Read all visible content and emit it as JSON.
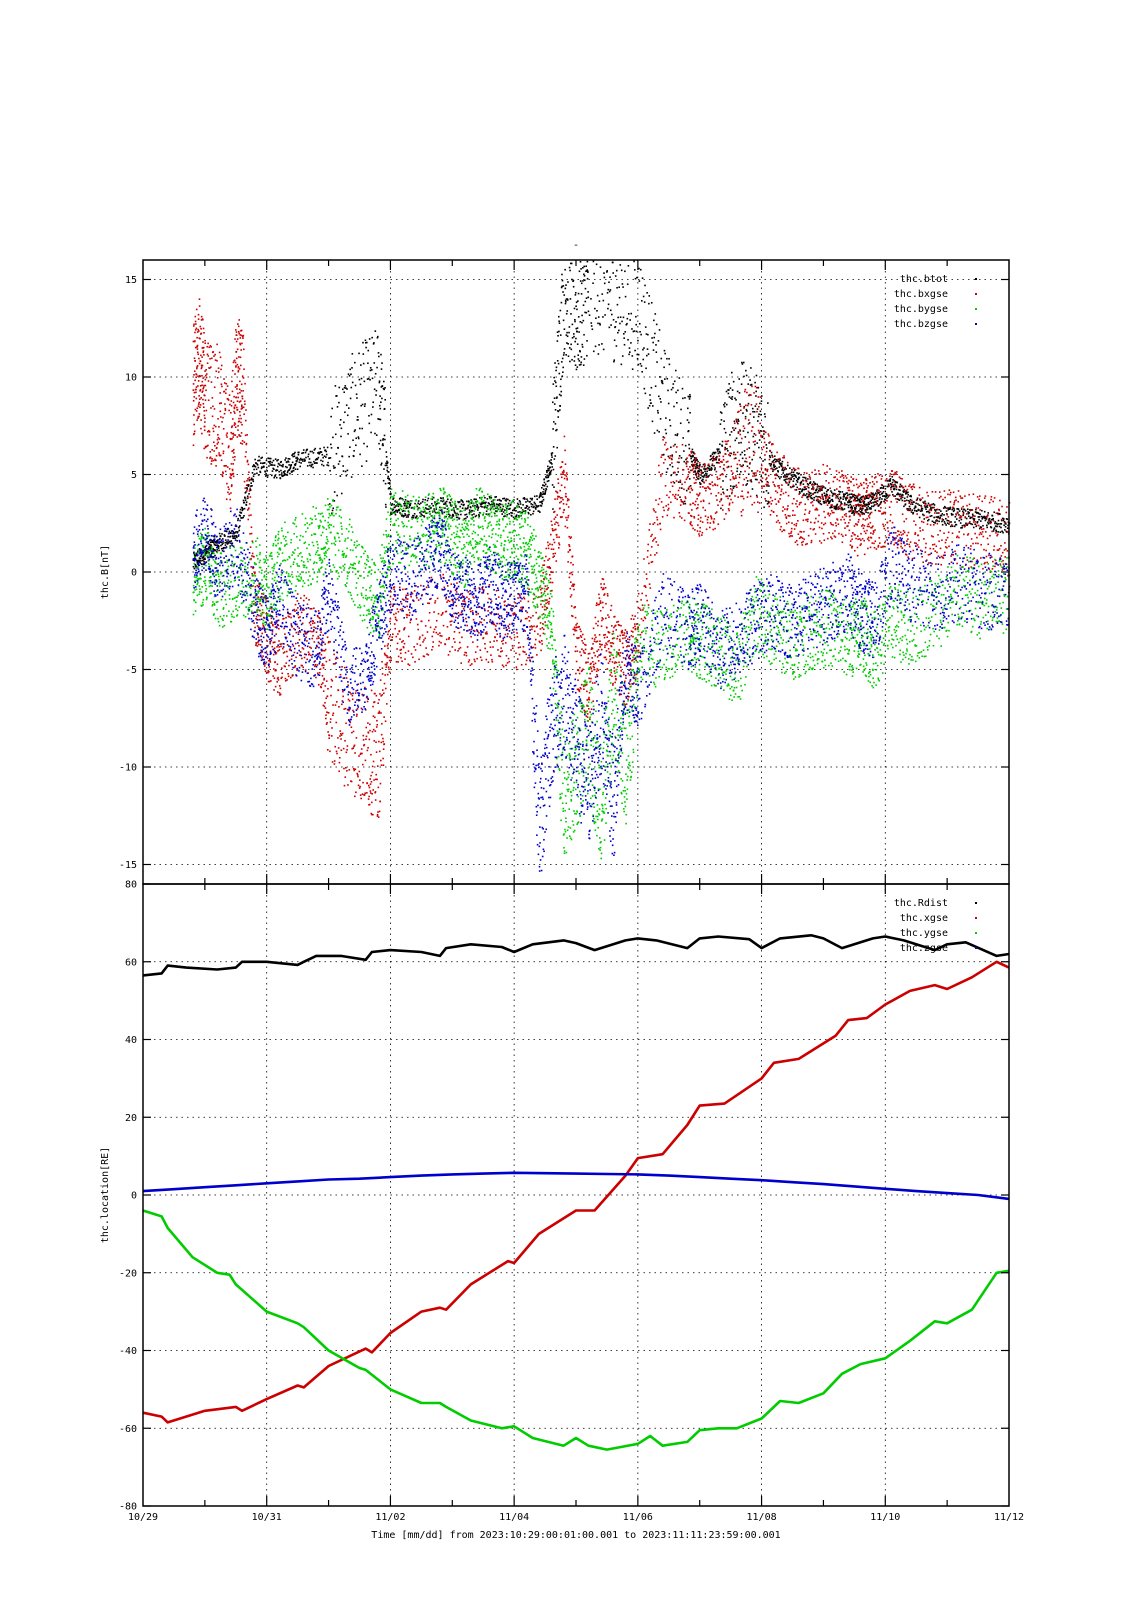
{
  "chart_data": [
    {
      "type": "scatter",
      "title": "-",
      "ylabel": "thc.B[nT]",
      "ylim": [
        -16,
        16
      ],
      "yticks": [
        -15,
        -10,
        -5,
        0,
        5,
        10,
        15
      ],
      "xlim": [
        0,
        14
      ],
      "grid": true,
      "legend_position": "top-right",
      "series": [
        {
          "name": "thc.btot",
          "color": "#000000",
          "x": [
            0.8,
            1.0,
            1.2,
            1.5,
            1.8,
            2.2,
            2.5,
            3.0,
            3.4,
            3.8,
            4.0,
            4.3,
            4.8,
            5.2,
            5.6,
            6.0,
            6.4,
            6.6,
            6.8,
            7.0,
            7.2,
            7.6,
            8.0,
            8.4,
            8.8,
            9.0,
            9.3,
            9.6,
            9.9,
            10.2,
            10.5,
            10.8,
            11.1,
            11.4,
            11.6,
            11.8,
            12.1,
            12.4,
            12.8,
            13.2,
            13.6,
            14.0
          ],
          "y": [
            0.5,
            1.0,
            1.5,
            2.0,
            5.5,
            5.3,
            5.8,
            6.0,
            8.2,
            9.5,
            3.5,
            3.3,
            3.4,
            3.2,
            3.5,
            3.3,
            3.5,
            5.8,
            14.5,
            13.0,
            14.5,
            14.0,
            13.5,
            8.5,
            6.3,
            5.0,
            6.0,
            7.8,
            7.2,
            5.5,
            4.8,
            4.2,
            3.8,
            3.6,
            3.4,
            3.6,
            4.5,
            3.5,
            3.0,
            2.8,
            2.7,
            2.5
          ]
        },
        {
          "name": "thc.bxgse",
          "color": "#cc0000",
          "x": [
            0.8,
            0.9,
            1.0,
            1.2,
            1.4,
            1.5,
            1.6,
            1.8,
            2.0,
            2.2,
            2.5,
            2.8,
            3.0,
            3.3,
            3.6,
            3.8,
            4.0,
            4.3,
            4.8,
            5.2,
            5.6,
            6.0,
            6.4,
            6.6,
            6.8,
            7.0,
            7.2,
            7.4,
            7.6,
            7.8,
            8.0,
            8.4,
            8.8,
            9.0,
            9.3,
            9.6,
            9.9,
            10.2,
            10.5,
            10.8,
            11.1,
            11.4,
            11.6,
            11.8,
            12.1,
            12.4,
            12.8,
            13.2,
            13.6,
            14.0
          ],
          "y": [
            9.5,
            11.0,
            9.0,
            8.5,
            6.0,
            10.0,
            9.5,
            -2.0,
            -3.5,
            -4.5,
            -3.0,
            -3.5,
            -6.5,
            -8.0,
            -9.0,
            -9.5,
            -2.5,
            -2.8,
            -2.0,
            -2.8,
            -2.6,
            -3.0,
            -2.5,
            1.0,
            5.0,
            -4.0,
            -6.0,
            -2.0,
            -4.0,
            -5.0,
            -3.0,
            5.0,
            4.5,
            3.8,
            4.2,
            6.0,
            6.5,
            4.5,
            3.5,
            3.2,
            3.8,
            3.0,
            2.8,
            3.0,
            3.5,
            2.6,
            2.4,
            2.2,
            2.0,
            1.8
          ]
        },
        {
          "name": "thc.bygse",
          "color": "#00cc00",
          "x": [
            0.8,
            1.0,
            1.2,
            1.5,
            1.8,
            2.0,
            2.2,
            2.5,
            2.8,
            3.0,
            3.3,
            3.6,
            3.8,
            4.0,
            4.3,
            4.6,
            4.8,
            5.0,
            5.2,
            5.4,
            5.6,
            5.8,
            6.0,
            6.2,
            6.4,
            6.6,
            6.8,
            7.0,
            7.2,
            7.4,
            7.6,
            7.8,
            8.0,
            8.4,
            8.8,
            9.0,
            9.3,
            9.6,
            9.9,
            10.2,
            10.5,
            10.8,
            11.1,
            11.4,
            11.6,
            11.8,
            12.1,
            12.4,
            12.8,
            13.2,
            13.6,
            14.0
          ],
          "y": [
            -0.5,
            0.5,
            -1.0,
            -0.5,
            0.0,
            -1.0,
            0.5,
            1.0,
            1.5,
            2.0,
            1.0,
            -1.0,
            -1.5,
            2.5,
            2.0,
            2.2,
            2.5,
            1.8,
            1.2,
            2.5,
            2.0,
            1.5,
            1.8,
            1.0,
            -0.5,
            -3.0,
            -12.0,
            -10.0,
            -8.0,
            -12.0,
            -6.0,
            -10.0,
            -3.5,
            -4.0,
            -3.0,
            -3.5,
            -4.0,
            -5.0,
            -2.0,
            -3.0,
            -3.5,
            -3.0,
            -2.8,
            -3.5,
            -3.0,
            -4.0,
            -2.5,
            -2.8,
            -2.0,
            -1.0,
            -1.5,
            -1.0
          ]
        },
        {
          "name": "thc.bzgse",
          "color": "#0000cc",
          "x": [
            0.8,
            1.0,
            1.2,
            1.5,
            1.8,
            2.0,
            2.2,
            2.5,
            2.8,
            3.0,
            3.3,
            3.6,
            3.8,
            4.0,
            4.3,
            4.6,
            4.8,
            5.0,
            5.2,
            5.4,
            5.6,
            5.8,
            6.0,
            6.2,
            6.4,
            6.6,
            6.8,
            7.0,
            7.2,
            7.4,
            7.6,
            7.8,
            8.0,
            8.4,
            8.8,
            9.0,
            9.3,
            9.6,
            9.9,
            10.2,
            10.5,
            10.8,
            11.1,
            11.4,
            11.6,
            11.8,
            12.1,
            12.4,
            12.8,
            13.2,
            13.6,
            14.0
          ],
          "y": [
            1.0,
            2.0,
            0.5,
            1.5,
            -2.0,
            -3.0,
            -1.5,
            -3.5,
            -4.0,
            -1.0,
            -6.0,
            -5.0,
            -2.5,
            0.0,
            -0.5,
            0.5,
            1.5,
            -1.0,
            -1.0,
            -1.5,
            -0.5,
            -1.5,
            -1.0,
            -1.0,
            -13.0,
            -8.0,
            -6.0,
            -9.0,
            -11.0,
            -7.0,
            -12.0,
            -5.0,
            -6.0,
            -2.0,
            -3.0,
            -2.5,
            -4.0,
            -3.5,
            -2.5,
            -2.0,
            -2.5,
            -2.0,
            -1.5,
            -1.0,
            -2.0,
            -2.5,
            0.5,
            -0.5,
            -1.0,
            -0.5,
            -1.0,
            -1.0
          ]
        }
      ]
    },
    {
      "type": "line",
      "ylabel": "thc.location[RE]",
      "ylim": [
        -80,
        80
      ],
      "yticks": [
        -80,
        -60,
        -40,
        -20,
        0,
        20,
        40,
        60,
        80
      ],
      "xlim": [
        0,
        14
      ],
      "xticks": [
        "10/29",
        "10/31",
        "11/02",
        "11/04",
        "11/06",
        "11/08",
        "11/10",
        "11/12"
      ],
      "xlabel": "Time [mm/dd]  from 2023:10:29:00:01:00.001  to  2023:11:11:23:59:00.001",
      "grid": true,
      "legend_position": "top-right",
      "series": [
        {
          "name": "thc.Rdist",
          "color": "#000000",
          "x": [
            0,
            0.3,
            0.4,
            0.7,
            1.2,
            1.5,
            1.6,
            2.0,
            2.5,
            2.6,
            2.8,
            3.2,
            3.6,
            3.7,
            4.0,
            4.5,
            4.8,
            4.9,
            5.3,
            5.8,
            6.0,
            6.3,
            6.8,
            7.0,
            7.3,
            7.8,
            8.0,
            8.3,
            8.8,
            9.0,
            9.3,
            9.8,
            10.0,
            10.3,
            10.8,
            11.0,
            11.3,
            11.8,
            12.0,
            12.3,
            12.8,
            13.0,
            13.3,
            13.8,
            14.0
          ],
          "y": [
            56.5,
            57.0,
            59.0,
            58.5,
            58.0,
            58.5,
            60.0,
            60.0,
            59.2,
            60.0,
            61.5,
            61.5,
            60.5,
            62.5,
            63.0,
            62.5,
            61.5,
            63.5,
            64.5,
            63.8,
            62.5,
            64.5,
            65.5,
            64.8,
            63.0,
            65.5,
            66.0,
            65.5,
            63.5,
            66.0,
            66.5,
            65.8,
            63.5,
            66.0,
            66.8,
            66.0,
            63.5,
            66.0,
            66.5,
            65.5,
            63.0,
            64.5,
            65.0,
            61.5,
            62.0
          ]
        },
        {
          "name": "thc.xgse",
          "color": "#cc0000",
          "x": [
            0,
            0.3,
            0.4,
            1.0,
            1.5,
            1.6,
            2.0,
            2.5,
            2.6,
            3.0,
            3.6,
            3.7,
            4.0,
            4.5,
            4.8,
            4.9,
            5.3,
            5.9,
            6.0,
            6.4,
            7.0,
            7.3,
            7.8,
            8.0,
            8.4,
            8.8,
            9.0,
            9.4,
            10.0,
            10.2,
            10.6,
            11.2,
            11.4,
            11.7,
            12.0,
            12.4,
            12.8,
            13.0,
            13.4,
            13.8,
            14.0
          ],
          "y": [
            -56.0,
            -57.0,
            -58.5,
            -55.5,
            -54.5,
            -55.5,
            -52.5,
            -49.0,
            -49.5,
            -44.0,
            -39.5,
            -40.5,
            -35.5,
            -30.0,
            -29.0,
            -29.5,
            -23.0,
            -17.0,
            -17.5,
            -10.0,
            -4.0,
            -4.0,
            5.0,
            9.5,
            10.5,
            18.0,
            23.0,
            23.5,
            30.0,
            34.0,
            35.0,
            41.0,
            45.0,
            45.5,
            49.0,
            52.5,
            54.0,
            53.0,
            56.0,
            60.0,
            58.5
          ]
        },
        {
          "name": "thc.ygse",
          "color": "#00cc00",
          "x": [
            0,
            0.3,
            0.4,
            0.8,
            1.2,
            1.4,
            1.5,
            2.0,
            2.5,
            2.6,
            3.0,
            3.5,
            3.6,
            4.0,
            4.5,
            4.8,
            4.9,
            5.3,
            5.8,
            6.0,
            6.3,
            6.8,
            7.0,
            7.2,
            7.5,
            8.0,
            8.2,
            8.4,
            8.8,
            9.0,
            9.3,
            9.6,
            10.0,
            10.3,
            10.6,
            11.0,
            11.3,
            11.6,
            12.0,
            12.4,
            12.8,
            13.0,
            13.4,
            13.8,
            14.0
          ],
          "y": [
            -4.0,
            -5.5,
            -8.5,
            -16.0,
            -20.0,
            -20.5,
            -23.0,
            -30.0,
            -33.0,
            -34.0,
            -40.0,
            -44.5,
            -45.0,
            -50.0,
            -53.5,
            -53.5,
            -54.5,
            -58.0,
            -60.0,
            -59.5,
            -62.5,
            -64.5,
            -62.5,
            -64.5,
            -65.5,
            -64.0,
            -62.0,
            -64.5,
            -63.5,
            -60.5,
            -60.0,
            -60.0,
            -57.5,
            -53.0,
            -53.5,
            -51.0,
            -46.0,
            -43.5,
            -42.0,
            -37.5,
            -32.5,
            -33.0,
            -29.5,
            -20.0,
            -19.5
          ]
        },
        {
          "name": "thc.zgse",
          "color": "#0000cc",
          "x": [
            0,
            0.5,
            1.0,
            1.5,
            2.0,
            2.5,
            3.0,
            3.5,
            4.0,
            4.5,
            5.0,
            5.5,
            6.0,
            6.5,
            7.0,
            7.5,
            8.0,
            8.5,
            9.0,
            9.5,
            10.0,
            10.5,
            11.0,
            11.5,
            12.0,
            12.5,
            13.0,
            13.5,
            14.0
          ],
          "y": [
            1.0,
            1.5,
            2.0,
            2.5,
            3.0,
            3.5,
            4.0,
            4.2,
            4.6,
            5.0,
            5.3,
            5.5,
            5.7,
            5.6,
            5.5,
            5.4,
            5.3,
            5.0,
            4.6,
            4.2,
            3.8,
            3.3,
            2.8,
            2.2,
            1.6,
            1.0,
            0.5,
            0.0,
            -1.0
          ]
        }
      ]
    }
  ]
}
